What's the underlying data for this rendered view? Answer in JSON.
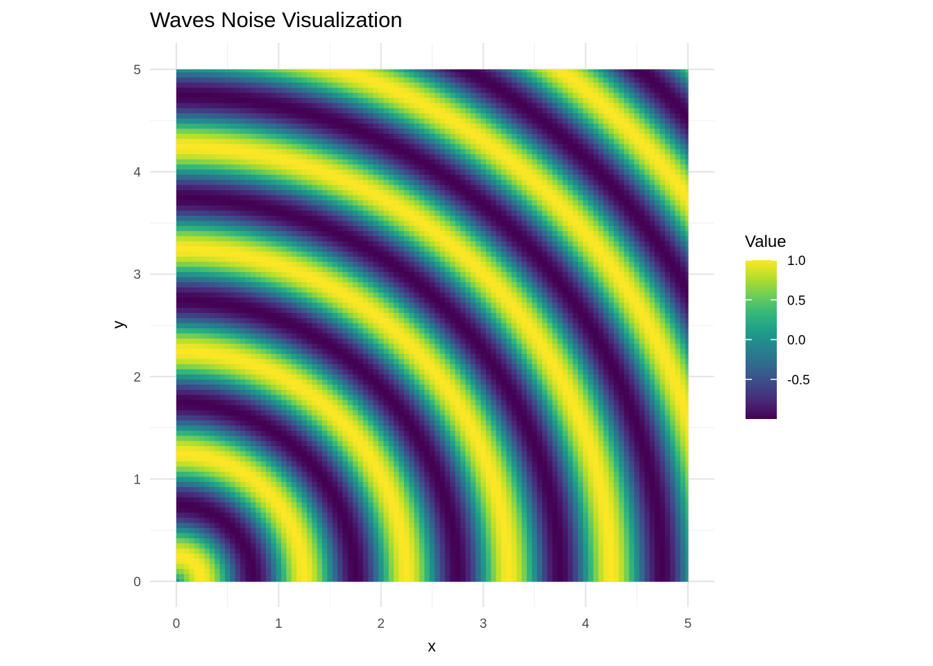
{
  "chart_data": {
    "type": "heatmap",
    "title": "Waves Noise Visualization",
    "xlabel": "x",
    "ylabel": "y",
    "xlim": [
      0,
      5
    ],
    "ylim": [
      0,
      5
    ],
    "x_ticks": [
      "0",
      "1",
      "2",
      "3",
      "4",
      "5"
    ],
    "y_ticks": [
      "0",
      "1",
      "2",
      "3",
      "4",
      "5"
    ],
    "grid": true,
    "surface": {
      "formula": "sin(2*pi*sqrt(x^2+y^2))",
      "grid_step": 0.05
    },
    "legend": {
      "title": "Value",
      "position": "right",
      "range": [
        -1,
        1
      ],
      "ticks": [
        "1.0",
        "0.5",
        "0.0",
        "-0.5"
      ],
      "colormap": [
        "#440154",
        "#482878",
        "#3e4989",
        "#31688e",
        "#26828e",
        "#1f9e89",
        "#35b779",
        "#6ece58",
        "#b5de2b",
        "#fde725"
      ]
    }
  }
}
